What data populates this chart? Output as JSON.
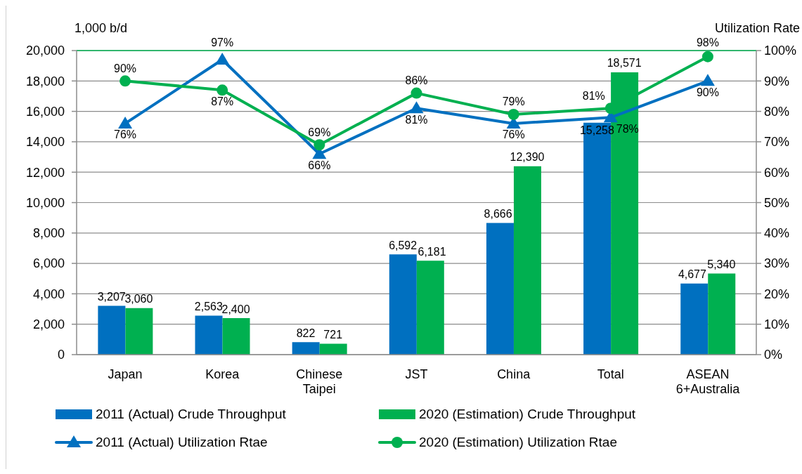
{
  "chart_data": {
    "type": "bar",
    "ylabel": "1,000 b/d",
    "y2label": "Utilization Rate",
    "categories": [
      "Japan",
      "Korea",
      "Chinese Taipei",
      "JST",
      "China",
      "Total",
      "ASEAN 6+Australia"
    ],
    "series": [
      {
        "name": "2011 (Actual) Crude Throughput",
        "color": "#0070c0",
        "values": [
          3207,
          2563,
          822,
          6592,
          8666,
          15258,
          4677
        ],
        "value_labels": [
          "3,207",
          "2,563",
          "822",
          "6,592",
          "8,666",
          "15,258",
          "4,677"
        ]
      },
      {
        "name": "2020 (Estimation) Crude Throughput",
        "color": "#00b050",
        "values": [
          3060,
          2400,
          721,
          6181,
          12390,
          18571,
          5340
        ],
        "value_labels": [
          "3,060",
          "2,400",
          "721",
          "6,181",
          "12,390",
          "18,571",
          "5,340"
        ]
      },
      {
        "name": "2011 (Actual) Utilization Rtae",
        "type": "line",
        "axis": "y2",
        "color": "#0070c0",
        "marker": "triangle",
        "values": [
          76,
          97,
          66,
          81,
          76,
          78,
          90
        ],
        "value_labels": [
          "76%",
          "97%",
          "66%",
          "81%",
          "76%",
          "78%",
          "90%"
        ]
      },
      {
        "name": "2020 (Estimation) Utilization Rtae",
        "type": "line",
        "axis": "y2",
        "color": "#00b050",
        "marker": "circle",
        "values": [
          90,
          87,
          69,
          86,
          79,
          81,
          98
        ],
        "value_labels": [
          "90%",
          "87%",
          "69%",
          "86%",
          "79%",
          "81%",
          "98%"
        ]
      }
    ],
    "ylim": [
      0,
      20000
    ],
    "yticks": [
      0,
      {
        "value": 2000,
        "label": "2,000"
      },
      {
        "value": 4000,
        "label": "4,000"
      },
      {
        "value": 6000,
        "label": "6,000"
      },
      {
        "value": 8000,
        "label": "8,000"
      },
      {
        "value": 10000,
        "label": "10,000"
      },
      {
        "value": 12000,
        "label": "12,000"
      },
      {
        "value": 14000,
        "label": "14,000"
      },
      {
        "value": 16000,
        "label": "16,000"
      },
      {
        "value": 18000,
        "label": "18,000"
      },
      {
        "value": 20000,
        "label": "20,000"
      }
    ],
    "y2lim": [
      0,
      100
    ],
    "y2ticks": [
      {
        "value": 0,
        "label": "0%"
      },
      {
        "value": 10,
        "label": "10%"
      },
      {
        "value": 20,
        "label": "20%"
      },
      {
        "value": 30,
        "label": "30%"
      },
      {
        "value": 40,
        "label": "40%"
      },
      {
        "value": 50,
        "label": "50%"
      },
      {
        "value": 60,
        "label": "60%"
      },
      {
        "value": 70,
        "label": "70%"
      },
      {
        "value": 80,
        "label": "80%"
      },
      {
        "value": 90,
        "label": "90%"
      },
      {
        "value": 100,
        "label": "100%"
      }
    ],
    "grid": "y",
    "legend": "bottom"
  }
}
